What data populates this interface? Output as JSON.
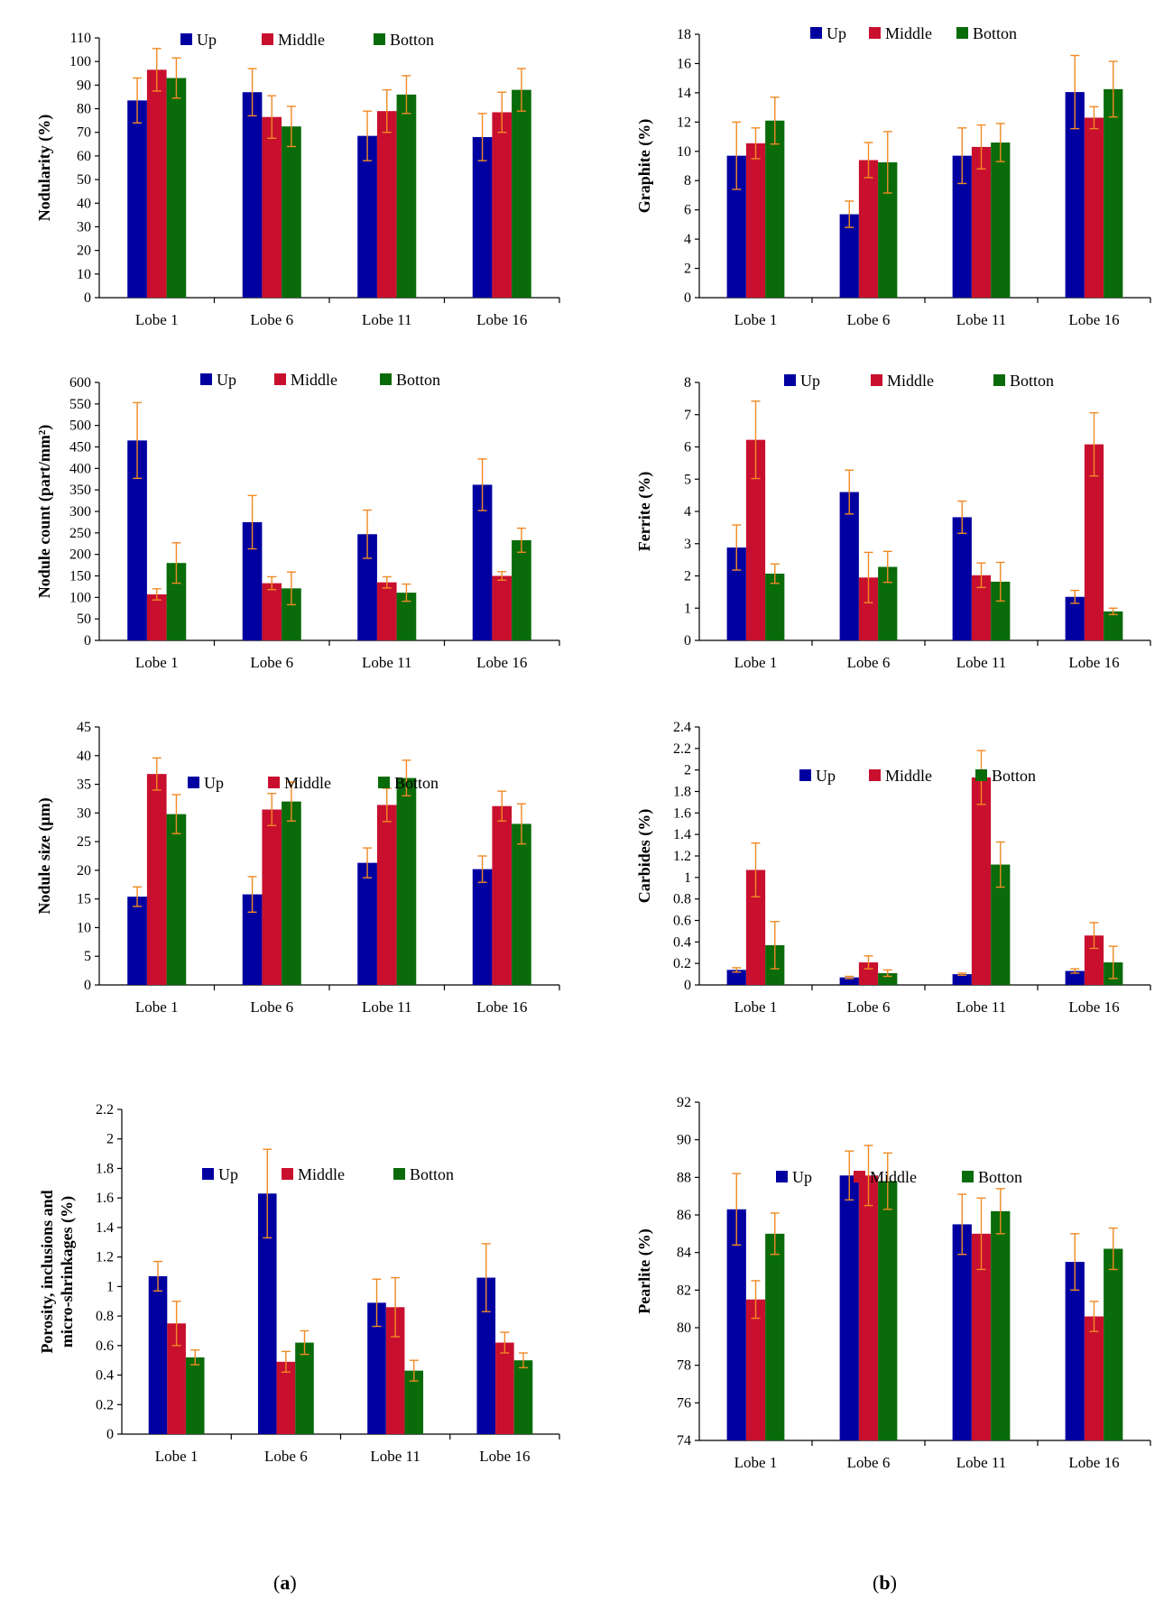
{
  "figure": {
    "caption_left": {
      "open": "(",
      "letter": "a",
      "close": ")"
    },
    "caption_right": {
      "open": "(",
      "letter": "b",
      "close": ")"
    }
  },
  "colors": {
    "up": "#0000a0",
    "middle": "#c8102e",
    "bottom": "#0a6b0a",
    "error": "#f08a24",
    "axis": "#000000"
  },
  "chart_data": [
    {
      "type": "bar",
      "ylabel": "Nodularity (%)",
      "categories": [
        "Lobe 1",
        "Lobe 6",
        "Lobe 11",
        "Lobe 16"
      ],
      "ylim": [
        0,
        110
      ],
      "yticks": [
        0,
        10,
        20,
        30,
        40,
        50,
        60,
        70,
        80,
        90,
        100,
        110
      ],
      "series": [
        {
          "name": "Up",
          "values": [
            83.5,
            87,
            68.5,
            68
          ],
          "errors": [
            9.5,
            10,
            10.5,
            10
          ]
        },
        {
          "name": "Middle",
          "values": [
            96.5,
            76.5,
            79,
            78.5
          ],
          "errors": [
            9,
            9,
            9,
            8.5
          ]
        },
        {
          "name": "Botton",
          "values": [
            93,
            72.5,
            86,
            88
          ],
          "errors": [
            8.5,
            8.5,
            8,
            9
          ]
        }
      ]
    },
    {
      "type": "bar",
      "ylabel": "Graphite (%)",
      "categories": [
        "Lobe 1",
        "Lobe 6",
        "Lobe 11",
        "Lobe 16"
      ],
      "ylim": [
        0,
        18
      ],
      "yticks": [
        0,
        2,
        4,
        6,
        8,
        10,
        12,
        14,
        16,
        18
      ],
      "series": [
        {
          "name": "Up",
          "values": [
            9.7,
            5.7,
            9.7,
            14.05
          ],
          "errors": [
            2.3,
            0.9,
            1.9,
            2.5
          ]
        },
        {
          "name": "Middle",
          "values": [
            10.55,
            9.4,
            10.3,
            12.3
          ],
          "errors": [
            1.05,
            1.2,
            1.5,
            0.75
          ]
        },
        {
          "name": "Botton",
          "values": [
            12.1,
            9.25,
            10.6,
            14.25
          ],
          "errors": [
            1.6,
            2.1,
            1.3,
            1.9
          ]
        }
      ]
    },
    {
      "type": "bar",
      "ylabel": "Nodule count (part/mm²)",
      "categories": [
        "Lobe 1",
        "Lobe 6",
        "Lobe 11",
        "Lobe 16"
      ],
      "ylim": [
        0,
        600
      ],
      "yticks": [
        0,
        50,
        100,
        150,
        200,
        250,
        300,
        350,
        400,
        450,
        500,
        550,
        600
      ],
      "series": [
        {
          "name": "Up",
          "values": [
            465,
            275,
            247,
            362
          ],
          "errors": [
            88,
            62,
            56,
            60
          ]
        },
        {
          "name": "Middle",
          "values": [
            107,
            133,
            135,
            150
          ],
          "errors": [
            13,
            15,
            13,
            10
          ]
        },
        {
          "name": "Botton",
          "values": [
            180,
            121,
            111,
            233
          ],
          "errors": [
            47,
            38,
            20,
            28
          ]
        }
      ]
    },
    {
      "type": "bar",
      "ylabel": "Ferrite (%)",
      "categories": [
        "Lobe 1",
        "Lobe 6",
        "Lobe 11",
        "Lobe 16"
      ],
      "ylim": [
        0,
        8
      ],
      "yticks": [
        0,
        1,
        2,
        3,
        4,
        5,
        6,
        7,
        8
      ],
      "series": [
        {
          "name": "Up",
          "values": [
            2.88,
            4.6,
            3.82,
            1.35
          ],
          "errors": [
            0.7,
            0.68,
            0.5,
            0.2
          ]
        },
        {
          "name": "Middle",
          "values": [
            6.22,
            1.95,
            2.02,
            6.08
          ],
          "errors": [
            1.2,
            0.78,
            0.38,
            0.98
          ]
        },
        {
          "name": "Botton",
          "values": [
            2.07,
            2.28,
            1.82,
            0.9
          ],
          "errors": [
            0.3,
            0.48,
            0.6,
            0.1
          ]
        }
      ]
    },
    {
      "type": "bar",
      "ylabel": "Nodule size (μm)",
      "categories": [
        "Lobe 1",
        "Lobe 6",
        "Lobe 11",
        "Lobe 16"
      ],
      "ylim": [
        0,
        45
      ],
      "yticks": [
        0,
        5,
        10,
        15,
        20,
        25,
        30,
        35,
        40,
        45
      ],
      "series": [
        {
          "name": "Up",
          "values": [
            15.4,
            15.8,
            21.3,
            20.2
          ],
          "errors": [
            1.7,
            3.1,
            2.6,
            2.3
          ]
        },
        {
          "name": "Middle",
          "values": [
            36.8,
            30.6,
            31.4,
            31.2
          ],
          "errors": [
            2.8,
            2.8,
            2.9,
            2.6
          ]
        },
        {
          "name": "Botton",
          "values": [
            29.8,
            32,
            36.1,
            28.1
          ],
          "errors": [
            3.4,
            3.4,
            3.1,
            3.5
          ]
        }
      ]
    },
    {
      "type": "bar",
      "ylabel": "Carbides (%)",
      "categories": [
        "Lobe 1",
        "Lobe 6",
        "Lobe 11",
        "Lobe 16"
      ],
      "ylim": [
        0,
        2.4
      ],
      "yticks": [
        0,
        0.2,
        0.4,
        0.6,
        0.8,
        1,
        1.2,
        1.4,
        1.6,
        1.8,
        2,
        2.2,
        2.4
      ],
      "yticklabels": [
        "0",
        "0.2",
        "0.4",
        "0.6",
        "0.8",
        "1",
        "1.2",
        "1.4",
        "1.6",
        "1.8",
        "2",
        "2.2",
        "2.4"
      ],
      "series": [
        {
          "name": "Up",
          "values": [
            0.14,
            0.07,
            0.1,
            0.13
          ],
          "errors": [
            0.02,
            0.01,
            0.01,
            0.02
          ]
        },
        {
          "name": "Middle",
          "values": [
            1.07,
            0.21,
            1.93,
            0.46
          ],
          "errors": [
            0.25,
            0.06,
            0.25,
            0.12
          ]
        },
        {
          "name": "Botton",
          "values": [
            0.37,
            0.11,
            1.12,
            0.21
          ],
          "errors": [
            0.22,
            0.03,
            0.21,
            0.15
          ]
        }
      ]
    },
    {
      "type": "bar",
      "ylabel": "Porosity, inclusions and micro-shrinkages (%)",
      "ylabel_lines": [
        "Porosity, inclusions and",
        "micro-shrinkages (%)"
      ],
      "categories": [
        "Lobe 1",
        "Lobe 6",
        "Lobe 11",
        "Lobe 16"
      ],
      "ylim": [
        0,
        2.2
      ],
      "yticks": [
        0,
        0.2,
        0.4,
        0.6,
        0.8,
        1,
        1.2,
        1.4,
        1.6,
        1.8,
        2,
        2.2
      ],
      "yticklabels": [
        "0",
        "0.2",
        "0.4",
        "0.6",
        "0.8",
        "1",
        "1.2",
        "1.4",
        "1.6",
        "1.8",
        "2",
        "2.2"
      ],
      "series": [
        {
          "name": "Up",
          "values": [
            1.07,
            1.63,
            0.89,
            1.06
          ],
          "errors": [
            0.1,
            0.3,
            0.16,
            0.23
          ]
        },
        {
          "name": "Middle",
          "values": [
            0.75,
            0.49,
            0.86,
            0.62
          ],
          "errors": [
            0.15,
            0.07,
            0.2,
            0.07
          ]
        },
        {
          "name": "Botton",
          "values": [
            0.52,
            0.62,
            0.43,
            0.5
          ],
          "errors": [
            0.05,
            0.08,
            0.07,
            0.05
          ]
        }
      ]
    },
    {
      "type": "bar",
      "ylabel": "Pearlite (%)",
      "categories": [
        "Lobe 1",
        "Lobe 6",
        "Lobe 11",
        "Lobe 16"
      ],
      "ylim": [
        74,
        92
      ],
      "yticks": [
        74,
        76,
        78,
        80,
        82,
        84,
        86,
        88,
        90,
        92
      ],
      "series": [
        {
          "name": "Up",
          "values": [
            86.3,
            88.1,
            85.5,
            83.5
          ],
          "errors": [
            1.9,
            1.3,
            1.6,
            1.5
          ]
        },
        {
          "name": "Middle",
          "values": [
            81.5,
            88.1,
            85,
            80.6
          ],
          "errors": [
            1,
            1.6,
            1.9,
            0.8
          ]
        },
        {
          "name": "Botton",
          "values": [
            85,
            87.8,
            86.2,
            84.2
          ],
          "errors": [
            1.1,
            1.5,
            1.2,
            1.1
          ]
        }
      ]
    }
  ]
}
